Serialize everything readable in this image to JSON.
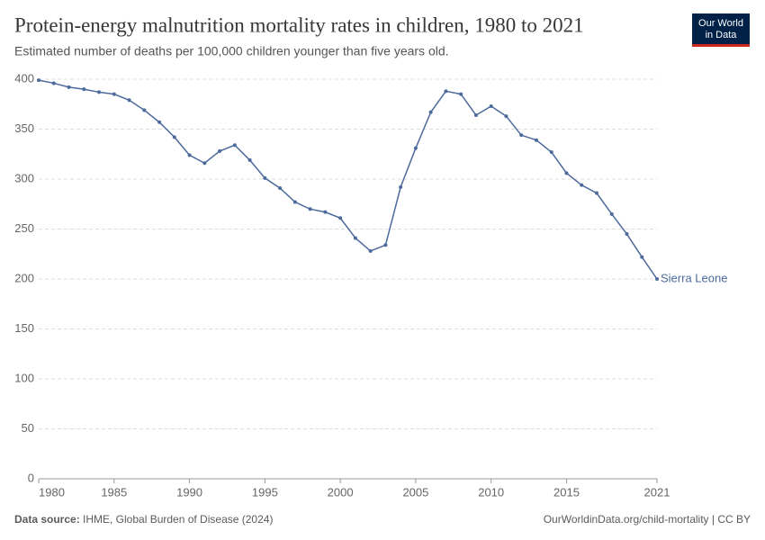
{
  "chart_data": {
    "type": "line",
    "title": "Protein-energy malnutrition mortality rates in children, 1980 to 2021",
    "subtitle": "Estimated number of deaths per 100,000 children younger than five years old.",
    "x": [
      1980,
      1981,
      1982,
      1983,
      1984,
      1985,
      1986,
      1987,
      1988,
      1989,
      1990,
      1991,
      1992,
      1993,
      1994,
      1995,
      1996,
      1997,
      1998,
      1999,
      2000,
      2001,
      2002,
      2003,
      2004,
      2005,
      2006,
      2007,
      2008,
      2009,
      2010,
      2011,
      2012,
      2013,
      2014,
      2015,
      2016,
      2017,
      2018,
      2019,
      2020,
      2021
    ],
    "series": [
      {
        "name": "Sierra Leone",
        "color": "#4c6a9c",
        "values": [
          399,
          396,
          392,
          390,
          387,
          385,
          379,
          369,
          357,
          342,
          324,
          316,
          328,
          334,
          319,
          301,
          291,
          277,
          270,
          267,
          261,
          241,
          228,
          234,
          292,
          331,
          367,
          388,
          385,
          364,
          373,
          363,
          344,
          339,
          327,
          306,
          294,
          286,
          265,
          245,
          222,
          200
        ]
      }
    ],
    "xlim": [
      1980,
      2021
    ],
    "xticks": [
      1980,
      1985,
      1990,
      1995,
      2000,
      2005,
      2010,
      2015,
      2021
    ],
    "ylim": [
      0,
      400
    ],
    "yticks": [
      0,
      50,
      100,
      150,
      200,
      250,
      300,
      350,
      400
    ],
    "grid": true
  },
  "logo": [
    "Our World",
    "in Data"
  ],
  "footer": {
    "source_label": "Data source:",
    "source": "IHME, Global Burden of Disease (2024)",
    "right": "OurWorldinData.org/child-mortality | CC BY"
  }
}
